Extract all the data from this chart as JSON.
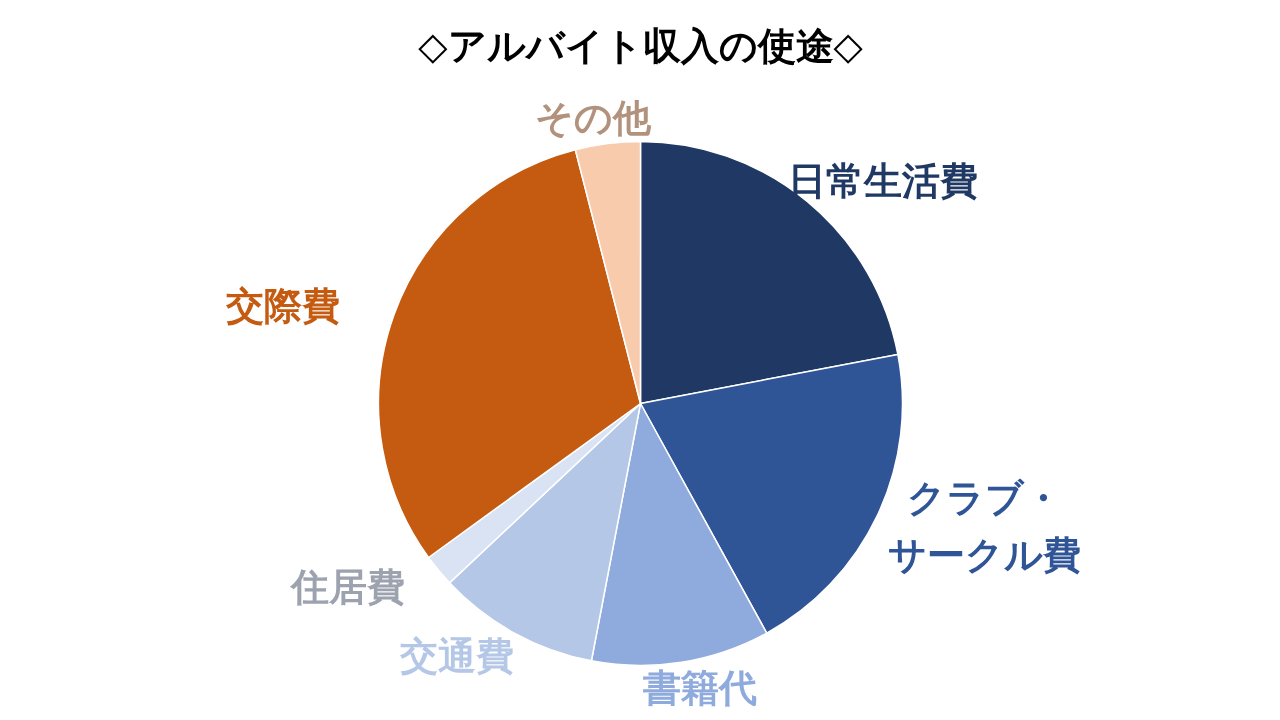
{
  "chart_data": {
    "type": "pie",
    "title": "◇アルバイト収入の使途◇",
    "categories": [
      "日常生活費",
      "クラブ・サークル費",
      "書籍代",
      "交通費",
      "住居費",
      "交際費",
      "その他"
    ],
    "values": [
      22,
      20,
      11,
      10,
      2,
      31,
      4
    ],
    "colors": [
      "#203864",
      "#2f5597",
      "#8faadc",
      "#b4c7e7",
      "#dae3f3",
      "#c55a11",
      "#f8cbad"
    ]
  }
}
